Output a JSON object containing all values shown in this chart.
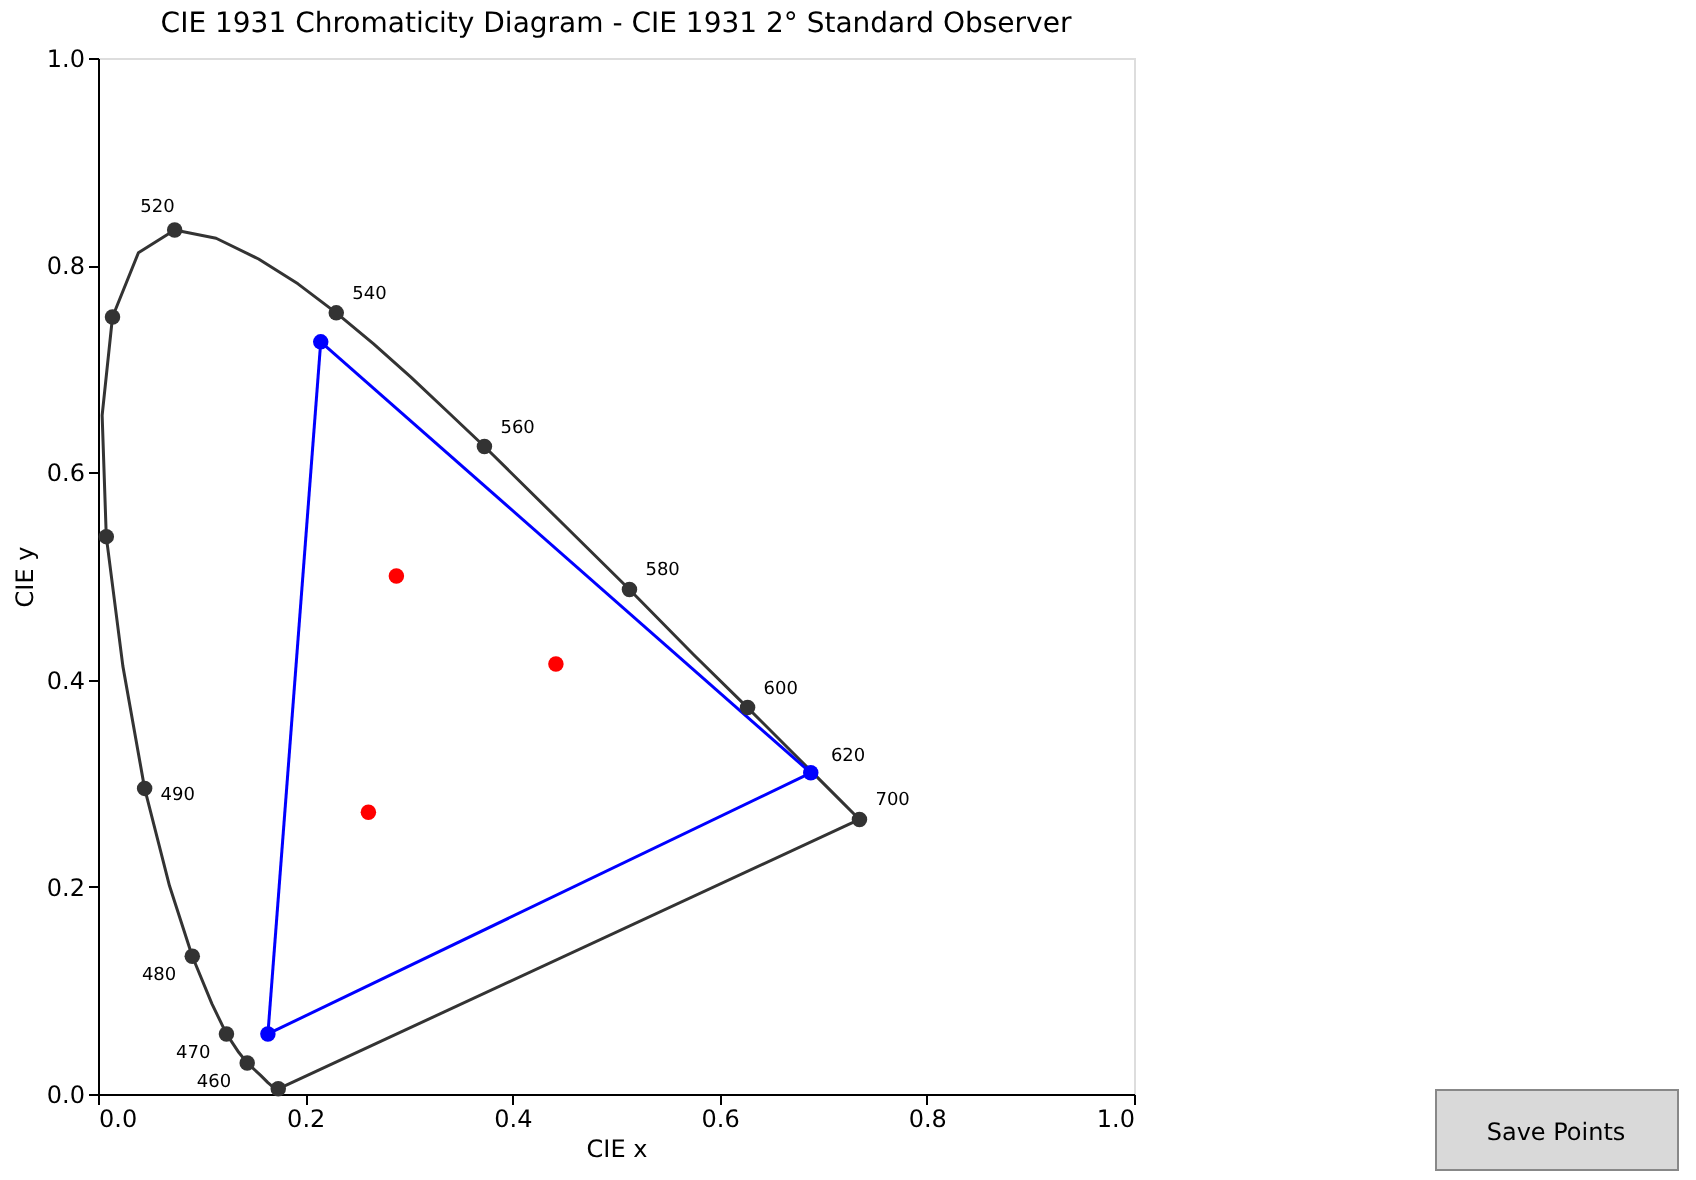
{
  "chart_data": {
    "type": "line",
    "title": "CIE 1931 Chromaticity Diagram - CIE 1931 2° Standard Observer",
    "xlabel": "CIE x",
    "ylabel": "CIE y",
    "xlim": [
      0,
      1
    ],
    "ylim": [
      0,
      1
    ],
    "xticks": [
      {
        "value": 0,
        "label": "0.0"
      },
      {
        "value": 0.2,
        "label": "0.2"
      },
      {
        "value": 0.4,
        "label": "0.4"
      },
      {
        "value": 0.6,
        "label": "0.6"
      },
      {
        "value": 0.8,
        "label": "0.8"
      },
      {
        "value": 1,
        "label": "1.0"
      }
    ],
    "yticks": [
      {
        "value": 0,
        "label": "0.0"
      },
      {
        "value": 0.2,
        "label": "0.2"
      },
      {
        "value": 0.4,
        "label": "0.4"
      },
      {
        "value": 0.6,
        "label": "0.6"
      },
      {
        "value": 0.8,
        "label": "0.8"
      },
      {
        "value": 1,
        "label": "1.0"
      }
    ],
    "grid": false,
    "series": [
      {
        "color": "#333333",
        "x": [
          0.174,
          0.173,
          0.171,
          0.164,
          0.157,
          0.144,
          0.136,
          0.124,
          0.11,
          0.091,
          0.069,
          0.045,
          0.024,
          0.008,
          0.004,
          0.014,
          0.039,
          0.074,
          0.114,
          0.155,
          0.193,
          0.23,
          0.266,
          0.302,
          0.337,
          0.373,
          0.444,
          0.513,
          0.575,
          0.627,
          0.666,
          0.692,
          0.719,
          0.73,
          0.735
        ],
        "values": [
          0.005,
          0.005,
          0.005,
          0.011,
          0.018,
          0.03,
          0.04,
          0.058,
          0.087,
          0.133,
          0.201,
          0.295,
          0.413,
          0.538,
          0.655,
          0.75,
          0.812,
          0.834,
          0.826,
          0.806,
          0.782,
          0.754,
          0.724,
          0.692,
          0.659,
          0.625,
          0.555,
          0.487,
          0.424,
          0.373,
          0.334,
          0.308,
          0.281,
          0.27,
          0.265
        ]
      },
      {
        "color": "#333333",
        "x": [
          0.174,
          0.735
        ],
        "values": [
          0.005,
          0.265
        ]
      },
      {
        "color": "#0000ff",
        "x": [
          0.215,
          0.688
        ],
        "values": [
          0.726,
          0.31
        ]
      },
      {
        "color": "#0000ff",
        "x": [
          0.164,
          0.688
        ],
        "values": [
          0.058,
          0.31
        ]
      },
      {
        "color": "#0000ff",
        "x": [
          0.164,
          0.215
        ],
        "values": [
          0.058,
          0.726
        ]
      },
      {
        "type": "scatter",
        "color": "#333333",
        "x": [
          0.174,
          0.144,
          0.124,
          0.091,
          0.045,
          0.008,
          0.014,
          0.074,
          0.23,
          0.373,
          0.513,
          0.627,
          0.692,
          0.735
        ],
        "values": [
          0.005,
          0.03,
          0.058,
          0.133,
          0.295,
          0.538,
          0.75,
          0.834,
          0.754,
          0.625,
          0.487,
          0.373,
          null,
          0.265
        ]
      },
      {
        "type": "scatter",
        "color": "#0000ff",
        "x": [
          0.215,
          0.688,
          0.164
        ],
        "values": [
          0.726,
          0.31,
          0.058
        ]
      },
      {
        "type": "scatter",
        "color": "#ff0000",
        "x": [
          0.288,
          0.442,
          0.261
        ],
        "values": [
          0.5,
          0.415,
          0.272
        ]
      }
    ],
    "annotations": [
      {
        "text": "460",
        "x": 0.144,
        "y": 0.03
      },
      {
        "text": "470",
        "x": 0.124,
        "y": 0.058
      },
      {
        "text": "480",
        "x": 0.091,
        "y": 0.133
      },
      {
        "text": "490",
        "x": 0.045,
        "y": 0.295
      },
      {
        "text": "520",
        "x": 0.074,
        "y": 0.834
      },
      {
        "text": "540",
        "x": 0.23,
        "y": 0.754
      },
      {
        "text": "560",
        "x": 0.373,
        "y": 0.625
      },
      {
        "text": "580",
        "x": 0.513,
        "y": 0.487
      },
      {
        "text": "600",
        "x": 0.627,
        "y": 0.373
      },
      {
        "text": "620",
        "x": 0.692,
        "y": 0.308
      },
      {
        "text": "700",
        "x": 0.735,
        "y": 0.265
      },
      "Save Points"
    ]
  }
}
